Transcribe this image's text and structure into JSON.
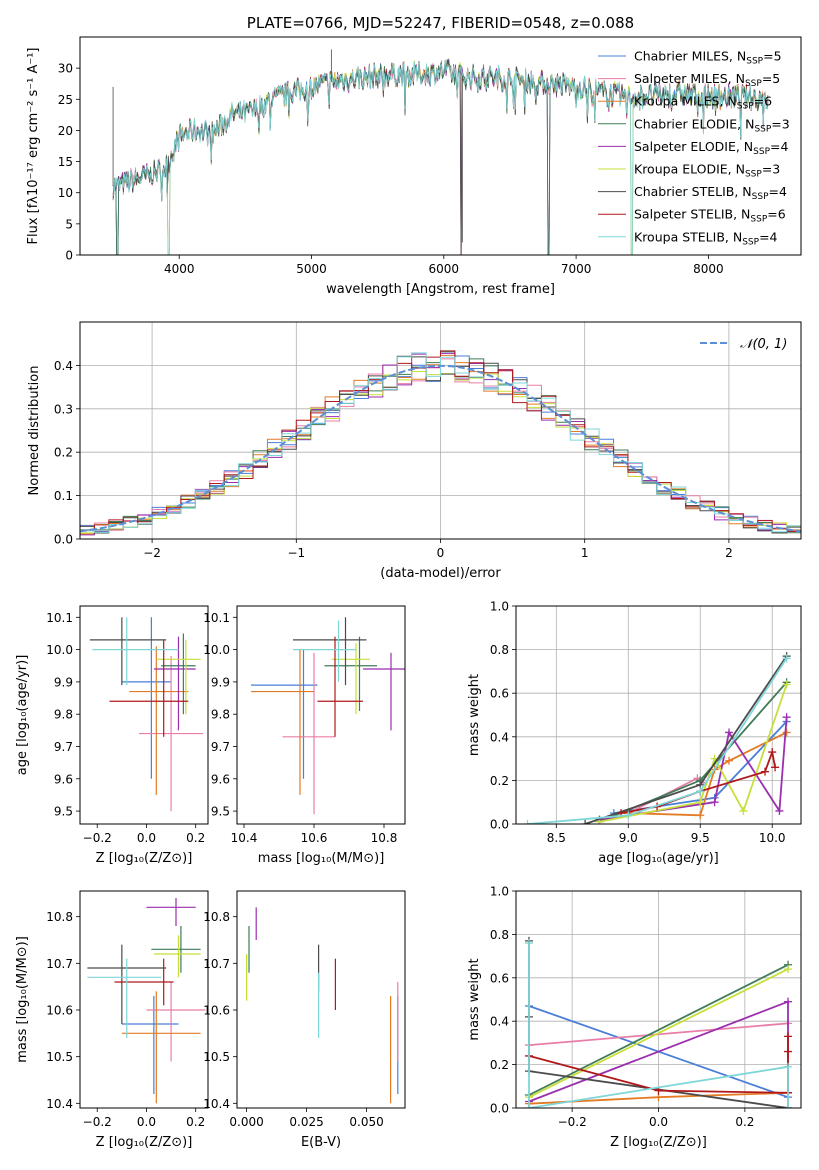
{
  "colors": {
    "Chabrier MILES": "#4a7fd8",
    "Salpeter MILES": "#e87ea8",
    "Kroupa MILES": "#e37b24",
    "Chabrier ELODIE": "#3f7d57",
    "Salpeter ELODIE": "#9b2fae",
    "Kroupa ELODIE": "#c8df3a",
    "Chabrier STELIB": "#4b4b4b",
    "Salpeter STELIB": "#b1181c",
    "Kroupa STELIB": "#7fd6d8",
    "gauss": "#5b8fd6"
  },
  "chart_data": [
    {
      "id": "spectrum",
      "type": "line",
      "title": "PLATE=0766, MJD=52247, FIBERID=0548, z=0.088",
      "xlabel": "wavelength [Angstrom, rest frame]",
      "ylabel": "Flux [fλ10⁻¹⁷ erg cm⁻² s⁻¹ A⁻¹]",
      "xlim": [
        3250,
        8700
      ],
      "ylim": [
        0,
        35
      ],
      "xticks": [
        "4000",
        "5000",
        "6000",
        "7000",
        "8000"
      ],
      "yticks": [
        "0",
        "5",
        "10",
        "15",
        "20",
        "25",
        "30"
      ],
      "legend_position": "top-right",
      "legend": [
        {
          "name": "Chabrier MILES",
          "label": "Chabrier MILES, N",
          "sub": "SSP",
          "count": "=5"
        },
        {
          "name": "Salpeter MILES",
          "label": "Salpeter MILES, N",
          "sub": "SSP",
          "count": "=5"
        },
        {
          "name": "Kroupa MILES",
          "label": "Kroupa MILES, N",
          "sub": "SSP",
          "count": "=6"
        },
        {
          "name": "Chabrier ELODIE",
          "label": "Chabrier ELODIE, N",
          "sub": "SSP",
          "count": "=3"
        },
        {
          "name": "Salpeter ELODIE",
          "label": "Salpeter ELODIE, N",
          "sub": "SSP",
          "count": "=4"
        },
        {
          "name": "Kroupa ELODIE",
          "label": "Kroupa ELODIE, N",
          "sub": "SSP",
          "count": "=3"
        },
        {
          "name": "Chabrier STELIB",
          "label": "Chabrier STELIB, N",
          "sub": "SSP",
          "count": "=4"
        },
        {
          "name": "Salpeter STELIB",
          "label": "Salpeter STELIB, N",
          "sub": "SSP",
          "count": "=6"
        },
        {
          "name": "Kroupa STELIB",
          "label": "Kroupa STELIB, N",
          "sub": "SSP",
          "count": "=4"
        }
      ],
      "continuum": {
        "x": [
          3500,
          3650,
          3800,
          3900,
          4000,
          4100,
          4250,
          4400,
          4550,
          4700,
          4850,
          5000,
          5200,
          5400,
          5600,
          5800,
          6000,
          6200,
          6400,
          6600,
          6800,
          7000,
          7200,
          7400,
          7600,
          7800,
          8000,
          8200,
          8450
        ],
        "y": [
          11,
          12,
          13,
          14,
          19,
          20,
          19.5,
          22.5,
          23,
          25,
          26,
          27,
          28,
          28.5,
          29,
          29,
          29.5,
          28.5,
          28.5,
          28,
          27.5,
          27,
          26,
          25.5,
          25.5,
          26,
          25.5,
          25.5,
          25
        ]
      },
      "dropouts": [
        3530,
        3920,
        6130,
        6790,
        7420
      ]
    },
    {
      "id": "residuals",
      "type": "line",
      "xlabel": "(data-model)/error",
      "ylabel": "Normed distribution",
      "xlim": [
        -2.5,
        2.5
      ],
      "ylim": [
        0,
        0.5
      ],
      "xticks": [
        "−2",
        "−1",
        "0",
        "1",
        "2"
      ],
      "yticks": [
        "0.0",
        "0.1",
        "0.2",
        "0.3",
        "0.4"
      ],
      "grid": true,
      "legend_position": "top-right",
      "gauss_label": "𝒩(0, 1)",
      "gauss": {
        "mean": 0,
        "sigma": 1
      },
      "bin_edges": [
        -2.5,
        2.5
      ],
      "bin_width": 0.1
    },
    {
      "id": "age_vs_Z",
      "type": "scatter",
      "xlabel": "Z [log₁₀(Z/Z⊙)]",
      "ylabel": "age  [log₁₀(age/yr)]",
      "xlim": [
        -0.27,
        0.25
      ],
      "ylim": [
        9.46,
        10.135
      ],
      "xticks": [
        "−0.2",
        "0.0",
        "0.2"
      ],
      "yticks": [
        "9.5",
        "9.6",
        "9.7",
        "9.8",
        "9.9",
        "10.0",
        "10.1"
      ],
      "points": [
        {
          "series": "Chabrier MILES",
          "x": 0.02,
          "xerr": [
            0.12,
            0.08
          ],
          "y": 9.9,
          "yerr": [
            0.3,
            0.2
          ]
        },
        {
          "series": "Salpeter MILES",
          "x": 0.1,
          "xerr": [
            0.13,
            0.13
          ],
          "y": 9.74,
          "yerr": [
            0.24,
            0.24
          ]
        },
        {
          "series": "Kroupa MILES",
          "x": 0.04,
          "xerr": [
            0.11,
            0.13
          ],
          "y": 9.87,
          "yerr": [
            0.32,
            0.14
          ]
        },
        {
          "series": "Chabrier ELODIE",
          "x": 0.15,
          "xerr": [
            0.09,
            0.05
          ],
          "y": 9.95,
          "yerr": [
            0.15,
            0.1
          ]
        },
        {
          "series": "Salpeter ELODIE",
          "x": 0.13,
          "xerr": [
            0.1,
            0.07
          ],
          "y": 9.94,
          "yerr": [
            0.19,
            0.1
          ]
        },
        {
          "series": "Kroupa ELODIE",
          "x": 0.16,
          "xerr": [
            0.12,
            0.06
          ],
          "y": 9.97,
          "yerr": [
            0.17,
            0.06
          ]
        },
        {
          "series": "Chabrier STELIB",
          "x": -0.1,
          "xerr": [
            0.13,
            0.18
          ],
          "y": 10.03,
          "yerr": [
            0.14,
            0.07
          ]
        },
        {
          "series": "Salpeter STELIB",
          "x": 0.07,
          "xerr": [
            0.22,
            0.1
          ],
          "y": 9.84,
          "yerr": [
            0.11,
            0.19
          ]
        },
        {
          "series": "Kroupa STELIB",
          "x": -0.08,
          "xerr": [
            0.14,
            0.21
          ],
          "y": 10.0,
          "yerr": [
            0.11,
            0.1
          ]
        }
      ]
    },
    {
      "id": "age_vs_mass",
      "type": "scatter",
      "xlabel": "mass [log₁₀(M/M⊙)]",
      "ylabel": "",
      "xlim": [
        10.38,
        10.86
      ],
      "ylim": [
        9.46,
        10.135
      ],
      "xticks": [
        "10.4",
        "10.6",
        "10.8"
      ],
      "yticks": [
        "9.5",
        "9.6",
        "9.7",
        "9.8",
        "9.9",
        "10.0",
        "10.1"
      ],
      "points": [
        {
          "series": "Chabrier MILES",
          "x": 10.57,
          "xerr": [
            0.15,
            0.04
          ],
          "y": 9.89,
          "yerr": [
            0.29,
            0.11
          ]
        },
        {
          "series": "Salpeter MILES",
          "x": 10.6,
          "xerr": [
            0.09,
            0.06
          ],
          "y": 9.73,
          "yerr": [
            0.24,
            0.26
          ]
        },
        {
          "series": "Kroupa MILES",
          "x": 10.56,
          "xerr": [
            0.14,
            0.04
          ],
          "y": 9.87,
          "yerr": [
            0.32,
            0.13
          ]
        },
        {
          "series": "Chabrier ELODIE",
          "x": 10.73,
          "xerr": [
            0.1,
            0.05
          ],
          "y": 9.95,
          "yerr": [
            0.14,
            0.09
          ]
        },
        {
          "series": "Salpeter ELODIE",
          "x": 10.82,
          "xerr": [
            0.08,
            0.04
          ],
          "y": 9.94,
          "yerr": [
            0.19,
            0.05
          ]
        },
        {
          "series": "Kroupa ELODIE",
          "x": 10.72,
          "xerr": [
            0.07,
            0.04
          ],
          "y": 9.97,
          "yerr": [
            0.17,
            0.05
          ]
        },
        {
          "series": "Chabrier STELIB",
          "x": 10.69,
          "xerr": [
            0.15,
            0.06
          ],
          "y": 10.03,
          "yerr": [
            0.14,
            0.07
          ]
        },
        {
          "series": "Salpeter STELIB",
          "x": 10.66,
          "xerr": [
            0.05,
            0.08
          ],
          "y": 9.84,
          "yerr": [
            0.11,
            0.2
          ]
        },
        {
          "series": "Kroupa STELIB",
          "x": 10.67,
          "xerr": [
            0.13,
            0.05
          ],
          "y": 10.0,
          "yerr": [
            0.1,
            0.09
          ]
        }
      ]
    },
    {
      "id": "weight_vs_age",
      "type": "line",
      "xlabel": "age  [log₁₀(age/yr)]",
      "ylabel": "mass weight",
      "xlim": [
        8.22,
        10.2
      ],
      "ylim": [
        0,
        1
      ],
      "xticks": [
        "8.5",
        "9.0",
        "9.5",
        "10.0"
      ],
      "yticks": [
        "0.0",
        "0.2",
        "0.4",
        "0.6",
        "0.8",
        "1.0"
      ],
      "grid": true,
      "series": [
        {
          "name": "Chabrier MILES",
          "x": [
            8.9,
            9.6,
            10.1
          ],
          "y": [
            0.05,
            0.12,
            0.47
          ]
        },
        {
          "name": "Salpeter MILES",
          "x": [
            9.0,
            9.48,
            9.52
          ],
          "y": [
            0.05,
            0.21,
            0.19
          ]
        },
        {
          "name": "Kroupa MILES",
          "x": [
            9.0,
            9.5,
            9.6,
            9.7,
            10.1
          ],
          "y": [
            0.05,
            0.04,
            0.25,
            0.29,
            0.42
          ]
        },
        {
          "name": "Chabrier ELODIE",
          "x": [
            8.8,
            9.5,
            10.1
          ],
          "y": [
            0.01,
            0.2,
            0.65
          ]
        },
        {
          "name": "Salpeter ELODIE",
          "x": [
            8.8,
            9.6,
            9.7,
            10.05,
            10.1
          ],
          "y": [
            0.02,
            0.1,
            0.42,
            0.06,
            0.49
          ]
        },
        {
          "name": "Kroupa ELODIE",
          "x": [
            8.8,
            9.5,
            9.6,
            9.8,
            10.1
          ],
          "y": [
            0.01,
            0.1,
            0.3,
            0.06,
            0.64
          ]
        },
        {
          "name": "Chabrier STELIB",
          "x": [
            8.7,
            9.5,
            10.1
          ],
          "y": [
            0.0,
            0.18,
            0.77
          ]
        },
        {
          "name": "Salpeter STELIB",
          "x": [
            8.95,
            9.2,
            9.5,
            9.95,
            10.0,
            10.02
          ],
          "y": [
            0.05,
            0.08,
            0.15,
            0.24,
            0.33,
            0.26
          ]
        },
        {
          "name": "Kroupa STELIB",
          "x": [
            8.3,
            9.0,
            9.5,
            10.1
          ],
          "y": [
            0.0,
            0.04,
            0.15,
            0.76
          ]
        }
      ]
    },
    {
      "id": "mass_vs_Z",
      "type": "scatter",
      "xlabel": "Z [log₁₀(Z/Z⊙)]",
      "ylabel": "mass [log₁₀(M/M⊙)]",
      "xlim": [
        -0.27,
        0.25
      ],
      "ylim": [
        10.39,
        10.855
      ],
      "xticks": [
        "−0.2",
        "0.0",
        "0.2"
      ],
      "yticks": [
        "10.4",
        "10.5",
        "10.6",
        "10.7",
        "10.8"
      ],
      "points": [
        {
          "series": "Chabrier MILES",
          "x": 0.03,
          "xerr": [
            0.13,
            0.1
          ],
          "y": 10.57,
          "yerr": [
            0.15,
            0.06
          ]
        },
        {
          "series": "Salpeter MILES",
          "x": 0.1,
          "xerr": [
            0.1,
            0.14
          ],
          "y": 10.6,
          "yerr": [
            0.11,
            0.06
          ]
        },
        {
          "series": "Kroupa MILES",
          "x": 0.04,
          "xerr": [
            0.14,
            0.18
          ],
          "y": 10.55,
          "yerr": [
            0.15,
            0.09
          ]
        },
        {
          "series": "Chabrier ELODIE",
          "x": 0.14,
          "xerr": [
            0.12,
            0.08
          ],
          "y": 10.73,
          "yerr": [
            0.05,
            0.05
          ]
        },
        {
          "series": "Salpeter ELODIE",
          "x": 0.12,
          "xerr": [
            0.12,
            0.08
          ],
          "y": 10.82,
          "yerr": [
            0.04,
            0.02
          ]
        },
        {
          "series": "Kroupa ELODIE",
          "x": 0.13,
          "xerr": [
            0.1,
            0.09
          ],
          "y": 10.72,
          "yerr": [
            0.05,
            0.04
          ]
        },
        {
          "series": "Chabrier STELIB",
          "x": -0.1,
          "xerr": [
            0.14,
            0.18
          ],
          "y": 10.69,
          "yerr": [
            0.12,
            0.05
          ]
        },
        {
          "series": "Salpeter STELIB",
          "x": 0.07,
          "xerr": [
            0.2,
            0.04
          ],
          "y": 10.66,
          "yerr": [
            0.05,
            0.05
          ]
        },
        {
          "series": "Kroupa STELIB",
          "x": -0.08,
          "xerr": [
            0.16,
            0.14
          ],
          "y": 10.67,
          "yerr": [
            0.13,
            0.04
          ]
        }
      ]
    },
    {
      "id": "mass_vs_ebv",
      "type": "scatter",
      "xlabel": "E(B-V)",
      "ylabel": "",
      "xlim": [
        -0.004,
        0.066
      ],
      "ylim": [
        10.39,
        10.855
      ],
      "xticks": [
        "0.000",
        "0.025",
        "0.050"
      ],
      "yticks": [
        "10.4",
        "10.5",
        "10.6",
        "10.7",
        "10.8"
      ],
      "points": [
        {
          "series": "Chabrier MILES",
          "x": 0.063,
          "yerr": [
            0.15,
            0.06
          ],
          "y": 10.57
        },
        {
          "series": "Salpeter MILES",
          "x": 0.063,
          "yerr": [
            0.11,
            0.06
          ],
          "y": 10.6
        },
        {
          "series": "Kroupa MILES",
          "x": 0.06,
          "yerr": [
            0.15,
            0.08
          ],
          "y": 10.55
        },
        {
          "series": "Chabrier ELODIE",
          "x": 0.001,
          "yerr": [
            0.05,
            0.05
          ],
          "y": 10.73
        },
        {
          "series": "Salpeter ELODIE",
          "x": 0.004,
          "yerr": [
            0.05,
            0.02
          ],
          "y": 10.8
        },
        {
          "series": "Kroupa ELODIE",
          "x": 0.0,
          "yerr": [
            0.06,
            0.04
          ],
          "y": 10.68
        },
        {
          "series": "Chabrier STELIB",
          "x": 0.03,
          "yerr": [
            0.05,
            0.05
          ],
          "y": 10.69
        },
        {
          "series": "Salpeter STELIB",
          "x": 0.037,
          "yerr": [
            0.06,
            0.05
          ],
          "y": 10.66
        },
        {
          "series": "Kroupa STELIB",
          "x": 0.03,
          "yerr": [
            0.1,
            0.04
          ],
          "y": 10.64
        }
      ]
    },
    {
      "id": "weight_vs_Z",
      "type": "line",
      "xlabel": "Z [log₁₀(Z/Z⊙)]",
      "ylabel": "mass weight",
      "xlim": [
        -0.33,
        0.33
      ],
      "ylim": [
        0,
        1
      ],
      "xticks": [
        "−0.2",
        "0.0",
        "0.2"
      ],
      "yticks": [
        "0.0",
        "0.2",
        "0.4",
        "0.6",
        "0.8",
        "1.0"
      ],
      "grid": true,
      "series": [
        {
          "name": "Chabrier MILES",
          "x": [
            -0.3,
            0.3
          ],
          "y": [
            0.47,
            0.05
          ]
        },
        {
          "name": "Salpeter MILES",
          "x": [
            -0.3,
            0.3
          ],
          "y": [
            0.29,
            0.39
          ]
        },
        {
          "name": "Kroupa MILES",
          "x": [
            -0.3,
            0.0,
            0.3,
            0.3
          ],
          "y": [
            0.02,
            0.05,
            0.07,
            0.0
          ]
        },
        {
          "name": "Chabrier ELODIE",
          "x": [
            -0.3,
            0.3
          ],
          "y": [
            0.06,
            0.66
          ]
        },
        {
          "name": "Salpeter ELODIE",
          "x": [
            -0.3,
            0.3,
            0.3
          ],
          "y": [
            0.03,
            0.49,
            0.07
          ]
        },
        {
          "name": "Kroupa ELODIE",
          "x": [
            -0.3,
            0.3
          ],
          "y": [
            0.05,
            0.64
          ]
        },
        {
          "name": "Chabrier STELIB",
          "x": [
            -0.3,
            -0.3,
            -0.3,
            0.3
          ],
          "y": [
            0.77,
            0.42,
            0.17,
            0.0
          ]
        },
        {
          "name": "Salpeter STELIB",
          "x": [
            -0.3,
            0.0,
            0.3,
            0.3,
            0.3
          ],
          "y": [
            0.24,
            0.08,
            0.07,
            0.33,
            0.26
          ]
        },
        {
          "name": "Kroupa STELIB",
          "x": [
            -0.3,
            -0.3,
            0.3,
            0.3
          ],
          "y": [
            0.76,
            0.0,
            0.19,
            0.0
          ]
        }
      ]
    }
  ]
}
